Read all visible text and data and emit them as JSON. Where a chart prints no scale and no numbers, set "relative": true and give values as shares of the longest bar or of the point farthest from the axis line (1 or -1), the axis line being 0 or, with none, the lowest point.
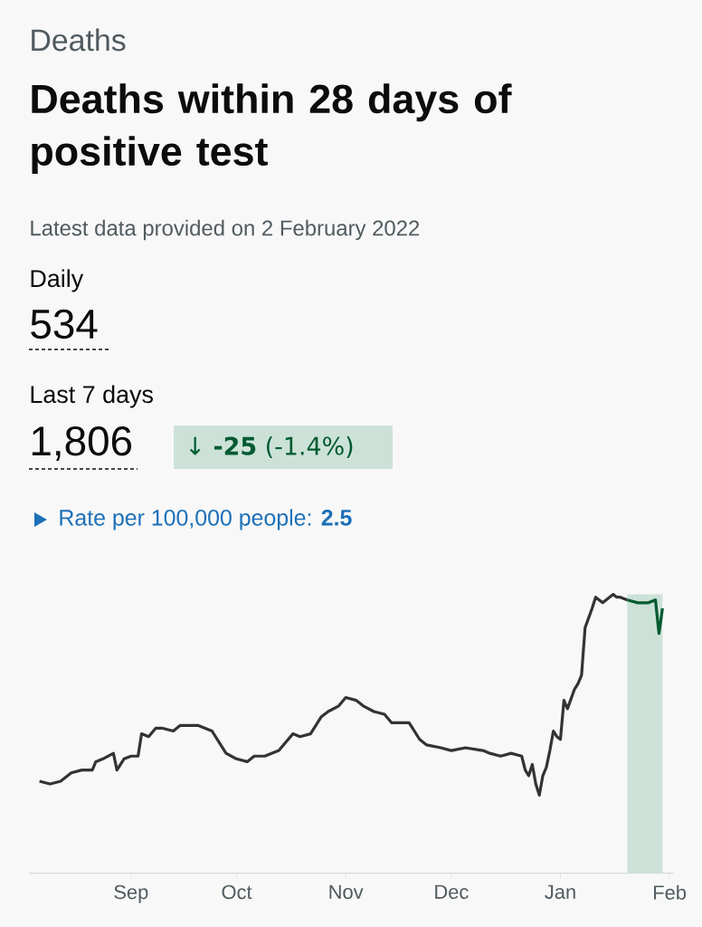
{
  "chart_data": {
    "type": "line",
    "title": "Deaths within 28 days of positive test",
    "relative": true,
    "annotations": [
      "Deaths",
      "Latest data provided on 2 February 2022",
      "Daily",
      "534",
      "Last 7 days",
      "1,806",
      "↓ **-25** (-1.4%)",
      "Rate per 100,000 people: **2.5**"
    ],
    "xlim": [
      "2021-08-03",
      "2022-02-02"
    ],
    "xticks": [
      {
        "value": "2021-09-01",
        "label": "Sep"
      },
      {
        "value": "2021-10-01",
        "label": "Oct"
      },
      {
        "value": "2021-11-01",
        "label": "Nov"
      },
      {
        "value": "2021-12-01",
        "label": "Dec"
      },
      {
        "value": "2022-01-01",
        "label": "Jan"
      },
      {
        "value": "2022-02-01",
        "label": "Feb"
      }
    ],
    "bands": [
      {
        "axis": "x",
        "from": "2022-01-20",
        "to": "2022-01-30",
        "color": "#cce2d8"
      }
    ],
    "series": [
      {
        "color": "#333333",
        "x": [
          "2021-08-06",
          "2021-08-09",
          "2021-08-12",
          "2021-08-15",
          "2021-08-18",
          "2021-08-21",
          "2021-08-22",
          "2021-08-24",
          "2021-08-27",
          "2021-08-28",
          "2021-08-30",
          "2021-09-01",
          "2021-09-03",
          "2021-09-04",
          "2021-09-06",
          "2021-09-08",
          "2021-09-10",
          "2021-09-13",
          "2021-09-15",
          "2021-09-18",
          "2021-09-19",
          "2021-09-20",
          "2021-09-22",
          "2021-09-24",
          "2021-09-26",
          "2021-09-28",
          "2021-10-01",
          "2021-10-04",
          "2021-10-06",
          "2021-10-09",
          "2021-10-13",
          "2021-10-15",
          "2021-10-17",
          "2021-10-19",
          "2021-10-22",
          "2021-10-25",
          "2021-10-27",
          "2021-10-30",
          "2021-11-01",
          "2021-11-04",
          "2021-11-06",
          "2021-11-09",
          "2021-11-12",
          "2021-11-14",
          "2021-11-19",
          "2021-11-22",
          "2021-11-24",
          "2021-11-28",
          "2021-12-01",
          "2021-12-05",
          "2021-12-10",
          "2021-12-12",
          "2021-12-15",
          "2021-12-18",
          "2021-12-21",
          "2021-12-22",
          "2021-12-23",
          "2021-12-24",
          "2021-12-25",
          "2021-12-26",
          "2021-12-27",
          "2021-12-28",
          "2021-12-29",
          "2021-12-30",
          "2021-12-31",
          "2022-01-01",
          "2022-01-02",
          "2022-01-03",
          "2022-01-05",
          "2022-01-06",
          "2022-01-07",
          "2022-01-08",
          "2022-01-10",
          "2022-01-11",
          "2022-01-13",
          "2022-01-15",
          "2022-01-16",
          "2022-01-17",
          "2022-01-18",
          "2022-01-20"
        ],
        "values": [
          0.33,
          0.32,
          0.33,
          0.36,
          0.37,
          0.37,
          0.4,
          0.41,
          0.43,
          0.37,
          0.41,
          0.42,
          0.42,
          0.5,
          0.49,
          0.52,
          0.52,
          0.51,
          0.53,
          0.53,
          0.53,
          0.53,
          0.52,
          0.51,
          0.47,
          0.43,
          0.41,
          0.4,
          0.42,
          0.42,
          0.44,
          0.47,
          0.5,
          0.49,
          0.5,
          0.56,
          0.58,
          0.6,
          0.63,
          0.62,
          0.6,
          0.58,
          0.57,
          0.54,
          0.54,
          0.48,
          0.46,
          0.45,
          0.44,
          0.45,
          0.44,
          0.43,
          0.42,
          0.43,
          0.42,
          0.37,
          0.35,
          0.39,
          0.32,
          0.28,
          0.35,
          0.38,
          0.44,
          0.51,
          0.49,
          0.48,
          0.62,
          0.59,
          0.66,
          0.68,
          0.71,
          0.88,
          0.95,
          0.99,
          0.97,
          0.99,
          1,
          0.99,
          0.99,
          0.98
        ]
      },
      {
        "color": "#005a30",
        "x": [
          "2022-01-20",
          "2022-01-23",
          "2022-01-26",
          "2022-01-28",
          "2022-01-29",
          "2022-01-30"
        ],
        "values": [
          0.98,
          0.97,
          0.97,
          0.98,
          0.86,
          0.95
        ]
      }
    ]
  }
}
